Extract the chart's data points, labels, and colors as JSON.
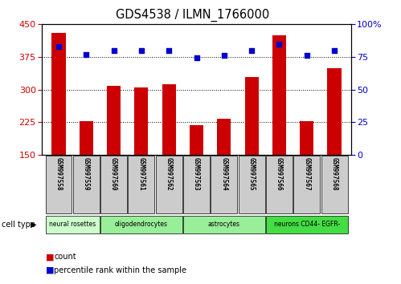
{
  "title": "GDS4538 / ILMN_1766000",
  "samples": [
    "GSM997558",
    "GSM997559",
    "GSM997560",
    "GSM997561",
    "GSM997562",
    "GSM997563",
    "GSM997564",
    "GSM997565",
    "GSM997566",
    "GSM997567",
    "GSM997568"
  ],
  "counts": [
    430,
    227,
    308,
    305,
    312,
    218,
    232,
    328,
    425,
    227,
    348
  ],
  "percentile": [
    83,
    77,
    80,
    80,
    80,
    74,
    76,
    80,
    85,
    76,
    80
  ],
  "ylim_left": [
    150,
    450
  ],
  "ylim_right": [
    0,
    100
  ],
  "yticks_left": [
    150,
    225,
    300,
    375,
    450
  ],
  "yticks_right": [
    0,
    25,
    50,
    75,
    100
  ],
  "bar_color": "#cc0000",
  "dot_color": "#0000cc",
  "grid_color": "#000000",
  "bg_plot": "#ffffff",
  "cell_types": [
    {
      "label": "neural rosettes",
      "indices": [
        0,
        1
      ],
      "color": "#ccffcc"
    },
    {
      "label": "oligodendrocytes",
      "indices": [
        2,
        3,
        4
      ],
      "color": "#99ee99"
    },
    {
      "label": "astrocytes",
      "indices": [
        5,
        6,
        7
      ],
      "color": "#99ee99"
    },
    {
      "label": "neurons CD44- EGFR-",
      "indices": [
        8,
        9,
        10
      ],
      "color": "#44dd44"
    }
  ],
  "tick_label_bg": "#cccccc",
  "legend_count_color": "#cc0000",
  "legend_dot_color": "#0000cc",
  "fig_width": 4.99,
  "fig_height": 3.54,
  "fig_dpi": 100
}
